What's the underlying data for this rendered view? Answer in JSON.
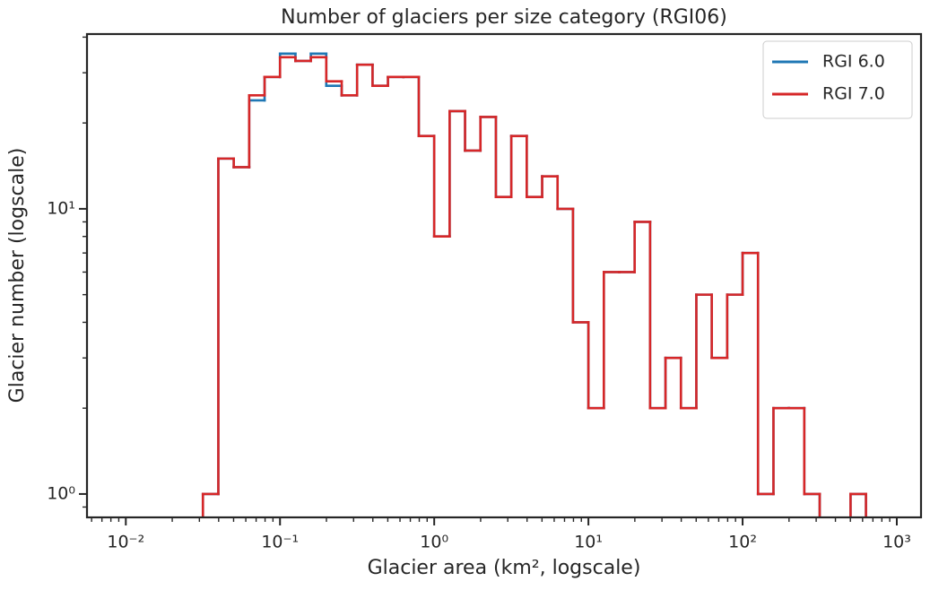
{
  "chart_data": {
    "type": "histogram",
    "title": "Number of glaciers per size category (RGI06)",
    "xlabel": "Glacier area (km², logscale)",
    "ylabel": "Glacier number (logscale)",
    "xscale": "log",
    "yscale": "log",
    "xlim": [
      0.0056,
      1436
    ],
    "ylim": [
      0.828,
      41
    ],
    "xticks": [
      {
        "value": 0.01,
        "label": "10⁻²"
      },
      {
        "value": 0.1,
        "label": "10⁻¹"
      },
      {
        "value": 1,
        "label": "10⁰"
      },
      {
        "value": 10,
        "label": "10¹"
      },
      {
        "value": 100,
        "label": "10²"
      },
      {
        "value": 1000,
        "label": "10³"
      }
    ],
    "yticks": [
      {
        "value": 1,
        "label": "10⁰"
      },
      {
        "value": 10,
        "label": "10¹"
      }
    ],
    "xminor": [
      0.006,
      0.007,
      0.008,
      0.009,
      0.02,
      0.03,
      0.04,
      0.05,
      0.06,
      0.07,
      0.08,
      0.09,
      0.2,
      0.3,
      0.4,
      0.5,
      0.6,
      0.7,
      0.8,
      0.9,
      2,
      3,
      4,
      5,
      6,
      7,
      8,
      9,
      20,
      30,
      40,
      50,
      60,
      70,
      80,
      90,
      200,
      300,
      400,
      500,
      600,
      700,
      800,
      900
    ],
    "yminor": [
      0.9,
      2,
      3,
      4,
      5,
      6,
      7,
      8,
      9,
      20,
      30,
      40
    ],
    "legend": "upper right",
    "grid": false,
    "bins": [
      0.01,
      0.01259,
      0.01585,
      0.01995,
      0.02512,
      0.03162,
      0.03981,
      0.05012,
      0.0631,
      0.07943,
      0.1,
      0.1259,
      0.1585,
      0.1995,
      0.2512,
      0.3162,
      0.3981,
      0.5012,
      0.631,
      0.7943,
      1,
      1.259,
      1.585,
      1.995,
      2.512,
      3.162,
      3.981,
      5.012,
      6.31,
      7.943,
      10,
      12.59,
      15.85,
      19.95,
      25.12,
      31.62,
      39.81,
      50.12,
      63.1,
      79.43,
      100,
      125.9,
      158.5,
      199.5,
      251.2,
      316.2,
      398.1,
      501.2,
      631,
      794.3,
      1000
    ],
    "series": [
      {
        "name": "RGI 6.0",
        "color": "#1f77b4",
        "values": [
          0,
          0,
          0,
          0,
          0,
          1,
          15,
          14,
          24,
          29,
          35,
          33,
          35,
          27,
          25,
          32,
          27,
          29,
          29,
          18,
          8,
          22,
          16,
          21,
          11,
          18,
          11,
          13,
          10,
          4,
          2,
          6,
          6,
          9,
          2,
          3,
          2,
          5,
          3,
          5,
          7,
          1,
          2,
          2,
          1,
          0,
          0,
          1,
          0,
          0
        ]
      },
      {
        "name": "RGI 7.0",
        "color": "#d62728",
        "values": [
          0,
          0,
          0,
          0,
          0,
          1,
          15,
          14,
          25,
          29,
          34,
          33,
          34,
          28,
          25,
          32,
          27,
          29,
          29,
          18,
          8,
          22,
          16,
          21,
          11,
          18,
          11,
          13,
          10,
          4,
          2,
          6,
          6,
          9,
          2,
          3,
          2,
          5,
          3,
          5,
          7,
          1,
          2,
          2,
          1,
          0,
          0,
          1,
          0,
          0
        ]
      }
    ]
  }
}
